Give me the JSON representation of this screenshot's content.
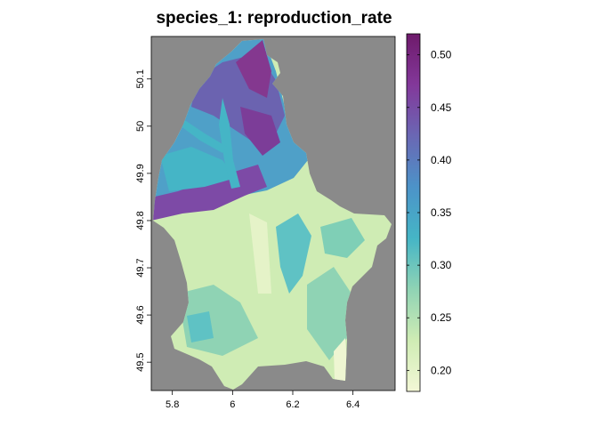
{
  "title": "species_1: reproduction_rate",
  "map": {
    "background_color": "#8a8a8a",
    "x_ticks": [
      "5.8",
      "6",
      "6.2",
      "6.4"
    ],
    "y_ticks": [
      "49.5",
      "49.6",
      "49.7",
      "49.8",
      "49.9",
      "50",
      "50.1"
    ],
    "x_range": [
      5.73,
      6.54
    ],
    "y_range": [
      49.44,
      50.19
    ]
  },
  "legend": {
    "ticks": [
      "0.20",
      "0.25",
      "0.30",
      "0.35",
      "0.40",
      "0.45",
      "0.50"
    ],
    "value_range": [
      0.18,
      0.52
    ],
    "colors": [
      "#f3f7d6",
      "#cfecb4",
      "#8fd3b4",
      "#45b5c6",
      "#4c93c8",
      "#6a67b4",
      "#83389a",
      "#6e1a6b"
    ]
  }
}
